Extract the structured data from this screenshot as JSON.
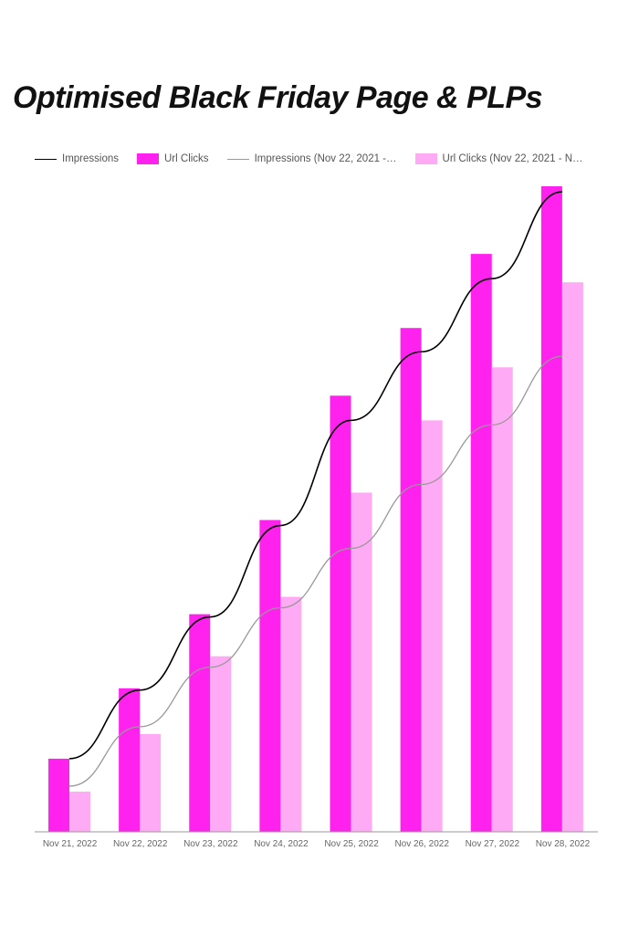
{
  "chart_data": {
    "type": "bar",
    "title": "Optimised Black Friday Page & PLPs",
    "categories": [
      "Nov 21, 2022",
      "Nov 22, 2022",
      "Nov 23, 2022",
      "Nov 24, 2022",
      "Nov 25, 2022",
      "Nov 26, 2022",
      "Nov 27, 2022",
      "Nov 28, 2022"
    ],
    "series": [
      {
        "name": "Impressions",
        "kind": "line",
        "color": "#000000",
        "values": [
          80,
          155,
          235,
          335,
          450,
          525,
          605,
          700
        ]
      },
      {
        "name": "Url Clicks",
        "kind": "bar",
        "color": "#ff22ee",
        "values": [
          80,
          157,
          238,
          341,
          477,
          551,
          632,
          706
        ]
      },
      {
        "name": "Impressions (Nov 22, 2021 -…",
        "kind": "line",
        "color": "#999999",
        "values": [
          50,
          115,
          180,
          245,
          310,
          380,
          445,
          520
        ]
      },
      {
        "name": "Url Clicks (Nov 22, 2021 - N…",
        "kind": "bar",
        "color": "#ffaaf5",
        "values": [
          44,
          107,
          192,
          257,
          371,
          450,
          508,
          601
        ]
      }
    ],
    "ylim": [
      0,
      710
    ],
    "grid": false,
    "legend": "top-left"
  }
}
